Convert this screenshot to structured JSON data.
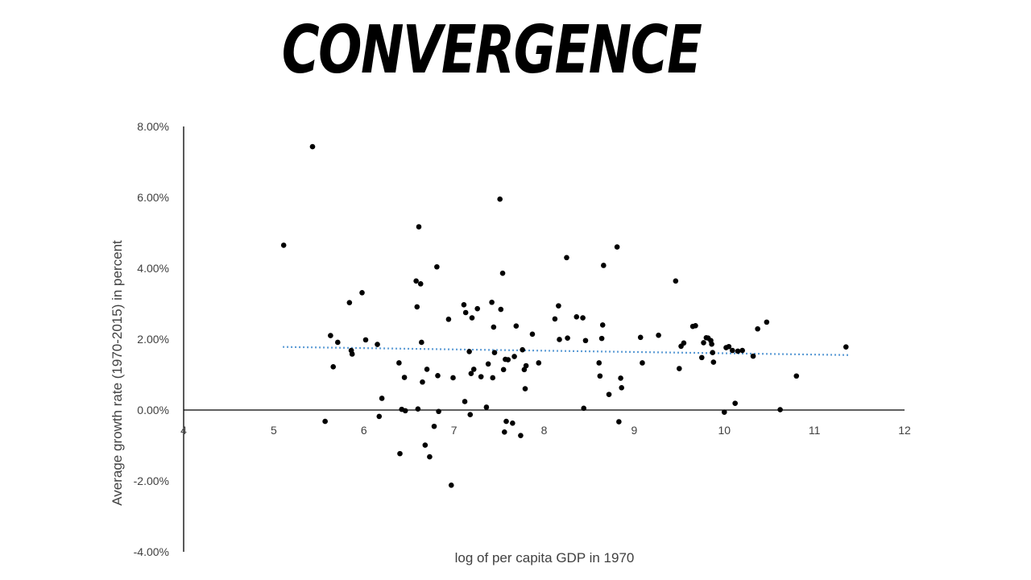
{
  "slide": {
    "title": "CONVERGENCE"
  },
  "colors": {
    "points": "#000000",
    "trendline": "#5b9bd5",
    "axis": "#000000",
    "text": "#404040"
  },
  "chart_data": {
    "type": "scatter",
    "title": "",
    "xlabel": "log of per capita GDP in 1970",
    "ylabel": "Average growth rate (1970-2015) in percent",
    "xlim": [
      4,
      12
    ],
    "ylim": [
      -4,
      8
    ],
    "x_ticks": [
      4,
      5,
      6,
      7,
      8,
      9,
      10,
      11,
      12
    ],
    "y_ticks": [
      -4,
      -2,
      0,
      2,
      4,
      6,
      8
    ],
    "y_tick_labels": [
      "-4.00%",
      "-2.00%",
      "0.00%",
      "2.00%",
      "4.00%",
      "6.00%",
      "8.00%"
    ],
    "x_tick_labels": [
      "4",
      "5",
      "6",
      "7",
      "8",
      "9",
      "10",
      "11",
      "12"
    ],
    "grid": false,
    "legend": "none",
    "trendline": {
      "style": "dotted",
      "x": [
        5.1,
        11.4
      ],
      "y": [
        1.78,
        1.55
      ]
    },
    "series": [
      {
        "x": [
          5.11,
          5.43,
          5.57,
          5.63,
          5.66,
          5.71,
          5.84,
          5.86,
          5.87,
          5.98,
          6.02,
          6.15,
          6.17,
          6.2,
          6.39,
          6.4,
          6.42,
          6.45,
          6.46,
          6.58,
          6.59,
          6.6,
          6.61,
          6.63,
          6.64,
          6.65,
          6.68,
          6.7,
          6.73,
          6.78,
          6.81,
          6.82,
          6.83,
          6.94,
          6.97,
          6.99,
          7.11,
          7.12,
          7.13,
          7.17,
          7.18,
          7.19,
          7.2,
          7.22,
          7.26,
          7.3,
          7.36,
          7.38,
          7.42,
          7.43,
          7.44,
          7.45,
          7.51,
          7.52,
          7.54,
          7.55,
          7.56,
          7.57,
          7.58,
          7.6,
          7.65,
          7.67,
          7.69,
          7.74,
          7.76,
          7.78,
          7.79,
          7.8,
          7.87,
          7.94,
          8.12,
          8.16,
          8.17,
          8.25,
          8.26,
          8.36,
          8.43,
          8.44,
          8.46,
          8.61,
          8.62,
          8.64,
          8.65,
          8.66,
          8.72,
          8.81,
          8.83,
          8.85,
          8.86,
          9.07,
          9.09,
          9.27,
          9.46,
          9.5,
          9.52,
          9.55,
          9.65,
          9.68,
          9.75,
          9.77,
          9.8,
          9.82,
          9.85,
          9.86,
          9.87,
          9.88,
          10.0,
          10.02,
          10.05,
          10.09,
          10.12,
          10.15,
          10.2,
          10.32,
          10.37,
          10.47,
          10.62,
          10.8,
          11.35
        ],
        "y": [
          4.65,
          7.43,
          -0.32,
          2.1,
          1.22,
          1.91,
          3.03,
          1.68,
          1.58,
          3.31,
          1.98,
          1.85,
          -0.18,
          0.33,
          1.33,
          -1.23,
          0.02,
          0.92,
          -0.02,
          3.64,
          2.91,
          0.03,
          5.17,
          3.56,
          1.91,
          0.79,
          -0.99,
          1.15,
          -1.32,
          -0.46,
          4.04,
          0.97,
          -0.04,
          2.56,
          -2.12,
          0.91,
          2.97,
          0.24,
          2.75,
          1.65,
          -0.13,
          1.03,
          2.6,
          1.15,
          2.86,
          0.94,
          0.08,
          1.3,
          3.04,
          0.91,
          2.34,
          1.62,
          5.95,
          2.84,
          3.86,
          1.14,
          -0.62,
          1.43,
          -0.32,
          1.42,
          -0.37,
          1.51,
          2.37,
          -0.72,
          1.7,
          1.14,
          0.6,
          1.25,
          2.14,
          1.33,
          2.57,
          2.94,
          1.99,
          4.3,
          2.03,
          2.63,
          2.6,
          0.05,
          1.96,
          1.33,
          0.96,
          2.02,
          2.4,
          4.08,
          0.44,
          4.6,
          -0.33,
          0.9,
          0.63,
          2.05,
          1.33,
          2.11,
          3.64,
          1.17,
          1.8,
          1.89,
          2.36,
          2.38,
          1.48,
          1.9,
          2.04,
          2.03,
          1.96,
          1.86,
          1.62,
          1.35,
          -0.06,
          1.76,
          1.79,
          1.68,
          0.19,
          1.66,
          1.68,
          1.52,
          2.29,
          2.48,
          0.01,
          0.96,
          1.78
        ]
      }
    ]
  }
}
